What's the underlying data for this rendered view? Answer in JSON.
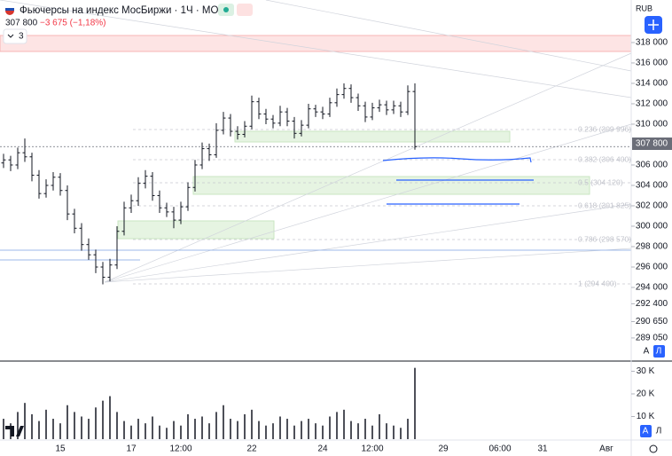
{
  "chart_data": {
    "type": "ohlc",
    "title": "Фьючерсы на индекс МосБиржи · 1Ч · MOEX",
    "last": {
      "value": 307800,
      "label": "307 800"
    },
    "change": "−3 675 (−1,18%)",
    "indicator_count": "3",
    "currency": "RUB",
    "scale_buttons": [
      "A",
      "Л"
    ],
    "color": "#131722",
    "categories": [
      null,
      null,
      null,
      null,
      null,
      null,
      null,
      null,
      "15",
      null,
      null,
      null,
      null,
      null,
      null,
      null,
      null,
      null,
      "17",
      null,
      null,
      null,
      null,
      null,
      null,
      "12:00",
      null,
      null,
      null,
      null,
      null,
      null,
      null,
      null,
      null,
      "22",
      null,
      null,
      null,
      null,
      null,
      null,
      null,
      null,
      null,
      "24",
      null,
      null,
      null,
      null,
      null,
      null,
      "12:00",
      null,
      null,
      null,
      null,
      null,
      null,
      null,
      null,
      null,
      "29",
      null,
      null,
      null,
      null,
      null,
      null,
      null,
      "06:00",
      null,
      null,
      null,
      null,
      null,
      "31",
      null,
      null,
      null,
      null,
      null,
      null,
      null,
      null,
      "Авг",
      null,
      null,
      null
    ],
    "open": [
      306200,
      306500,
      306000,
      307200,
      306800,
      305000,
      303200,
      304000,
      304800,
      303500,
      301200,
      299800,
      298200,
      297200,
      296000,
      295000,
      296200,
      299500,
      301800,
      302500,
      304200,
      304900,
      303000,
      301800,
      301400,
      300600,
      301900,
      303800,
      306000,
      307600,
      307000,
      309400,
      310600,
      309300,
      309000,
      309800,
      312200,
      311000,
      310500,
      310100,
      311200,
      310300,
      309100,
      309900,
      311500,
      311200,
      311000,
      312100,
      312900,
      313500,
      312600,
      311800,
      310700,
      311600,
      311900,
      311400,
      311800,
      311200,
      313200,
      null,
      null,
      null,
      null,
      null,
      null,
      null,
      null,
      null,
      null,
      null,
      null,
      null,
      null,
      null,
      null,
      null,
      null,
      null,
      null,
      null,
      null,
      null,
      null,
      null,
      null,
      null,
      null,
      null,
      null
    ],
    "high": [
      307100,
      306900,
      307700,
      308600,
      307200,
      305500,
      304600,
      305300,
      305200,
      304000,
      301700,
      300300,
      298800,
      297700,
      296500,
      296800,
      300000,
      302400,
      303100,
      304800,
      305500,
      305300,
      303500,
      302300,
      301900,
      302400,
      304300,
      306500,
      308200,
      308100,
      310100,
      311200,
      311000,
      309800,
      310300,
      312800,
      312600,
      311500,
      310900,
      311800,
      311600,
      310700,
      310400,
      312000,
      311900,
      311700,
      312600,
      313500,
      314000,
      313900,
      313000,
      312200,
      312100,
      312400,
      312300,
      312300,
      312200,
      313800,
      314000,
      null,
      null,
      null,
      null,
      null,
      null,
      null,
      null,
      null,
      null,
      null,
      null,
      null,
      null,
      null,
      null,
      null,
      null,
      null,
      null,
      null,
      null,
      null,
      null,
      null,
      null,
      null,
      null,
      null,
      null
    ],
    "low": [
      305700,
      305400,
      305600,
      306300,
      304400,
      302700,
      302800,
      303500,
      303000,
      300600,
      299300,
      297600,
      296700,
      295400,
      294300,
      294600,
      295800,
      299100,
      301300,
      302000,
      303700,
      302500,
      301300,
      300900,
      299800,
      300200,
      301500,
      303400,
      305600,
      306400,
      306700,
      309000,
      308800,
      308500,
      308700,
      309500,
      310500,
      310000,
      309600,
      309800,
      309800,
      308600,
      308800,
      309600,
      310700,
      310500,
      310700,
      311700,
      312500,
      312100,
      311300,
      310200,
      310400,
      311200,
      310900,
      311000,
      310700,
      310900,
      307500,
      null,
      null,
      null,
      null,
      null,
      null,
      null,
      null,
      null,
      null,
      null,
      null,
      null,
      null,
      null,
      null,
      null,
      null,
      null,
      null,
      null,
      null,
      null,
      null,
      null,
      null,
      null,
      null,
      null,
      null
    ],
    "close": [
      306500,
      306000,
      307200,
      306800,
      305000,
      303200,
      304000,
      304800,
      303500,
      301200,
      299800,
      298200,
      297200,
      296000,
      295000,
      296200,
      299500,
      301800,
      302500,
      304200,
      304900,
      303000,
      301800,
      301400,
      300600,
      301900,
      303800,
      306000,
      307600,
      307000,
      309400,
      310600,
      309300,
      309000,
      309800,
      312200,
      311000,
      310500,
      310100,
      311200,
      310300,
      309100,
      309900,
      311500,
      311200,
      311000,
      312100,
      312900,
      313500,
      312600,
      311800,
      310700,
      311600,
      311900,
      311400,
      311800,
      311200,
      313200,
      307800,
      null,
      null,
      null,
      null,
      null,
      null,
      null,
      null,
      null,
      null,
      null,
      null,
      null,
      null,
      null,
      null,
      null,
      null,
      null,
      null,
      null,
      null,
      null,
      null,
      null,
      null,
      null,
      null,
      null,
      null
    ],
    "volume": [
      9000,
      7000,
      12000,
      16000,
      11000,
      8000,
      13000,
      9000,
      7000,
      15000,
      12000,
      10000,
      9000,
      14000,
      17000,
      19000,
      12000,
      8000,
      6000,
      9000,
      7000,
      10000,
      6000,
      5000,
      8000,
      6000,
      11000,
      9000,
      10000,
      7000,
      12000,
      15000,
      9000,
      8000,
      11000,
      13000,
      8000,
      6000,
      7000,
      10000,
      9000,
      6000,
      8000,
      9000,
      7000,
      6000,
      10000,
      12000,
      13000,
      8000,
      7000,
      9000,
      6000,
      11000,
      7000,
      6000,
      5000,
      9000,
      31500,
      null,
      null,
      null,
      null,
      null,
      null,
      null,
      null,
      null,
      null,
      null,
      null,
      null,
      null,
      null,
      null,
      null,
      null,
      null,
      null,
      null,
      null,
      null,
      null,
      null,
      null,
      null,
      null,
      null,
      null
    ],
    "ylim": [
      287000,
      321300
    ],
    "yticks": [
      {
        "value": 318000,
        "label": "318 000"
      },
      {
        "value": 316000,
        "label": "316 000"
      },
      {
        "value": 314000,
        "label": "314 000"
      },
      {
        "value": 312000,
        "label": "312 000"
      },
      {
        "value": 310000,
        "label": "310 000"
      },
      {
        "value": 306000,
        "label": "306 000"
      },
      {
        "value": 304000,
        "label": "304 000"
      },
      {
        "value": 302000,
        "label": "302 000"
      },
      {
        "value": 300000,
        "label": "300 000"
      },
      {
        "value": 298000,
        "label": "298 000"
      },
      {
        "value": 296000,
        "label": "296 000"
      },
      {
        "value": 294000,
        "label": "294 000"
      },
      {
        "value": 292400,
        "label": "292 400"
      },
      {
        "value": 290650,
        "label": "290 650"
      },
      {
        "value": 289050,
        "label": "289 050"
      }
    ],
    "volume_ylim": [
      0,
      34500
    ],
    "volume_yticks": [
      {
        "value": 30000,
        "label": "30 K"
      },
      {
        "value": 20000,
        "label": "20 K"
      },
      {
        "value": 10000,
        "label": "10 K"
      }
    ],
    "annotations": [
      "0.236 (309 996)",
      "0.382 (306 400)",
      "0.5 (304 120)",
      "0.618 (301 825)",
      "0.786 (298 570)",
      "1 (294 400)"
    ]
  }
}
